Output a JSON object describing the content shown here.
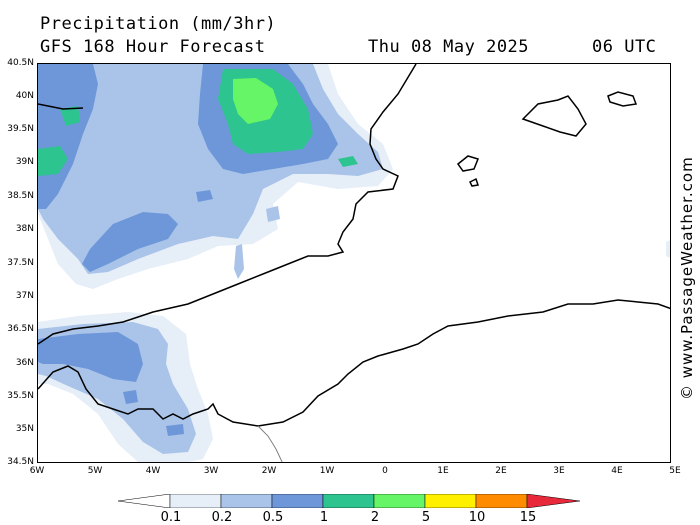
{
  "header": {
    "title": "Precipitation (mm/3hr)",
    "subtitle": "GFS 168 Hour Forecast",
    "date": "Thu 08 May 2025",
    "time": "06 UTC"
  },
  "credit": "© www.PassageWeather.com",
  "axes": {
    "lat_labels": [
      "40.5N",
      "40N",
      "39.5N",
      "39N",
      "38.5N",
      "38N",
      "37.5N",
      "37N",
      "36.5N",
      "36N",
      "35.5N",
      "35N",
      "34.5N"
    ],
    "lon_labels": [
      "6W",
      "5W",
      "4W",
      "3W",
      "2W",
      "1W",
      "0",
      "1E",
      "2E",
      "3E",
      "4E",
      "5E"
    ],
    "lat_range": [
      34.5,
      40.5
    ],
    "lon_range": [
      -6,
      5
    ]
  },
  "legend": {
    "labels": [
      "0.1",
      "0.2",
      "0.5",
      "1",
      "2",
      "5",
      "10",
      "15"
    ],
    "colors": [
      "#ffffff",
      "#e6eef8",
      "#a9c4e8",
      "#6e97d9",
      "#2ec490",
      "#66f566",
      "#fff000",
      "#ff8c00",
      "#e8293b"
    ]
  },
  "map_colors": {
    "land_line": "#000000",
    "border_line": "#808080",
    "precip_light": "#e6eef8",
    "precip_low": "#a9c4e8",
    "precip_mid": "#6e97d9",
    "precip_high": "#2ec490",
    "precip_max": "#66f566"
  }
}
